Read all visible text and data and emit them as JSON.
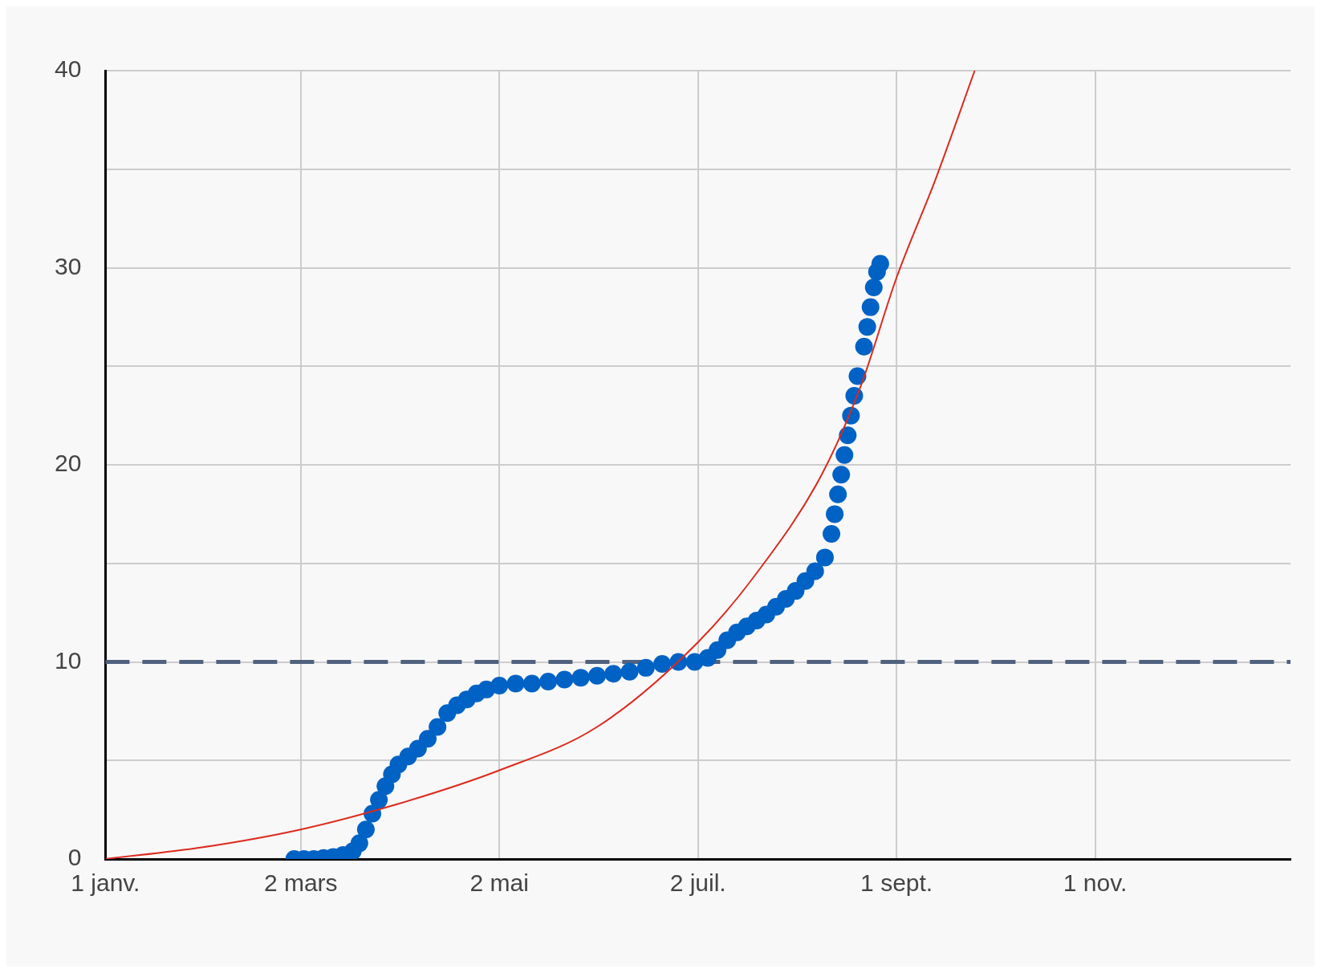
{
  "chart_data": {
    "type": "scatter",
    "xlim": [
      "--01-01",
      "--12-31"
    ],
    "xticks": [
      {
        "value": "--01-01",
        "label": "1 janv."
      },
      {
        "value": "--03-02",
        "label": "2 mars"
      },
      {
        "value": "--05-02",
        "label": "2 mai"
      },
      {
        "value": "--07-02",
        "label": "2 juil."
      },
      {
        "value": "--09-01",
        "label": "1 sept."
      },
      {
        "value": "--11-01",
        "label": "1 nov."
      }
    ],
    "ylim": [
      0,
      40
    ],
    "yticks": [
      0,
      {
        "value": 5,
        "label": null
      },
      10,
      {
        "value": 15,
        "label": null
      },
      20,
      {
        "value": 25,
        "label": null
      },
      30,
      {
        "value": 35,
        "label": null
      },
      40
    ],
    "grid": true,
    "legend": false,
    "ref_lines": [
      {
        "axis": "y",
        "value": 10,
        "color": "#50627e",
        "line_style": "dashed"
      }
    ],
    "series": [
      {
        "color": "#0062c4",
        "marker": "circle",
        "x": [
          "--02-28",
          "--03-03",
          "--03-06",
          "--03-09",
          "--03-12",
          "--03-15",
          "--03-18",
          "--03-20",
          "--03-22",
          "--03-24",
          "--03-26",
          "--03-28",
          "--03-30",
          "--04-01",
          "--04-04",
          "--04-07",
          "--04-10",
          "--04-13",
          "--04-16",
          "--04-19",
          "--04-22",
          "--04-25",
          "--04-28",
          "--05-02",
          "--05-07",
          "--05-12",
          "--05-17",
          "--05-22",
          "--05-27",
          "--06-01",
          "--06-06",
          "--06-11",
          "--06-16",
          "--06-21",
          "--06-26",
          "--07-01",
          "--07-05",
          "--07-08",
          "--07-11",
          "--07-14",
          "--07-17",
          "--07-20",
          "--07-23",
          "--07-26",
          "--07-29",
          "--08-01",
          "--08-04",
          "--08-07",
          "--08-10",
          "--08-12",
          "--08-13",
          "--08-14",
          "--08-15",
          "--08-16",
          "--08-17",
          "--08-18",
          "--08-19",
          "--08-20",
          "--08-22",
          "--08-23",
          "--08-24",
          "--08-25",
          "--08-26",
          "--08-27"
        ],
        "values": [
          0,
          0,
          0,
          0.05,
          0.1,
          0.2,
          0.4,
          0.8,
          1.5,
          2.3,
          3.0,
          3.7,
          4.3,
          4.8,
          5.2,
          5.6,
          6.1,
          6.7,
          7.4,
          7.8,
          8.1,
          8.4,
          8.6,
          8.8,
          8.9,
          8.9,
          9.0,
          9.1,
          9.2,
          9.3,
          9.4,
          9.5,
          9.7,
          9.9,
          10.0,
          10.0,
          10.2,
          10.6,
          11.1,
          11.5,
          11.8,
          12.1,
          12.4,
          12.8,
          13.2,
          13.6,
          14.1,
          14.6,
          15.3,
          16.5,
          17.5,
          18.5,
          19.5,
          20.5,
          21.5,
          22.5,
          23.5,
          24.5,
          26.0,
          27.0,
          28.0,
          29.0,
          29.8,
          30.2
        ]
      },
      {
        "type": "line",
        "color": "#dc2a1e",
        "marker": "none",
        "line_style": "solid",
        "x": [
          "--01-01",
          "--01-31",
          "--03-02",
          "--04-01",
          "--05-02",
          "--06-01",
          "--07-02",
          "--07-20",
          "--08-09",
          "--08-21",
          "--09-01",
          "--09-13",
          "--09-25"
        ],
        "values": [
          0,
          0.6,
          1.5,
          2.8,
          4.5,
          6.7,
          11.0,
          14.5,
          19.5,
          24.0,
          29.5,
          34.5,
          40
        ]
      }
    ]
  }
}
